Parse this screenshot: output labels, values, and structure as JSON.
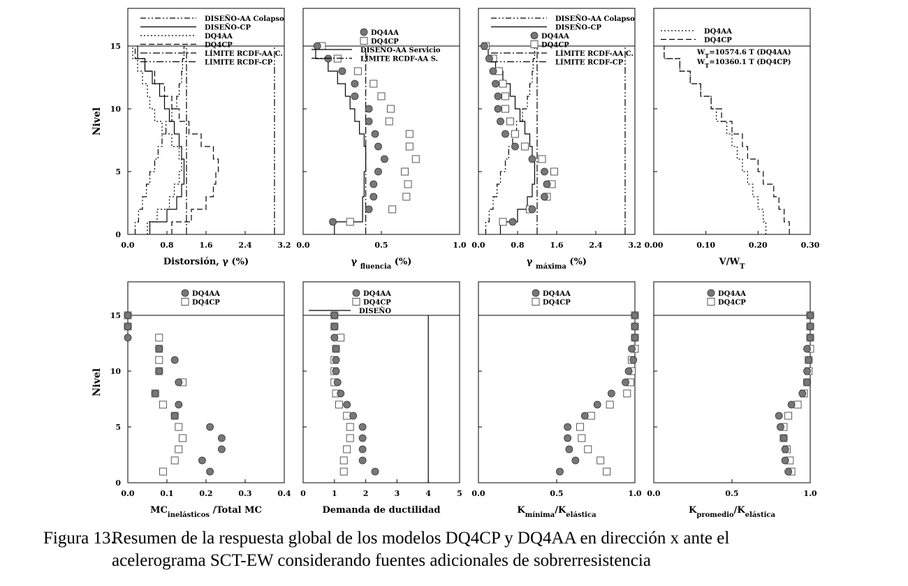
{
  "caption": {
    "number": "Figura 13.",
    "line1": "Resumen de la respuesta global de los modelos DQ4CP y DQ4AA en dirección x ante el",
    "line2": "acelerograma SCT-EW considerando fuentes adicionales de sobrerresistencia"
  },
  "colors": {
    "frame": "#000000",
    "dq4aa_fill": "#777777",
    "dq4cp_fill": "#ffffff",
    "line": "#000000"
  },
  "chart_data": [
    {
      "type": "line",
      "title": "",
      "ylabel": "Nivel",
      "xlabel": "Distorsión, γ (%)",
      "xlim": [
        0,
        3.2
      ],
      "ylim": [
        0,
        18
      ],
      "xticks": [
        "0.0",
        "0.8",
        "1.6",
        "2.4",
        "3.2"
      ],
      "xtick_values": [
        0,
        0.8,
        1.6,
        2.4,
        3.2
      ],
      "yticks": [
        "0",
        "5",
        "10",
        "15"
      ],
      "ytick_values": [
        0,
        5,
        10,
        15
      ],
      "roof_level": 15,
      "legend": [
        "DISEÑO-AA Colapso",
        "DISEÑO-CP",
        "DQ4AA",
        "DQ4CP",
        "LÍMITE RCDF-AA C.",
        "LÍMITE RCDF-CP"
      ],
      "series": [
        {
          "name": "DISEÑO-AA Colapso",
          "style": "dashdotdot",
          "values": [
            0.15,
            0.22,
            0.3,
            0.38,
            0.45,
            0.55,
            0.62,
            0.7,
            0.78,
            0.9,
            1.0,
            1.05,
            1.1,
            1.12,
            1.15
          ]
        },
        {
          "name": "DISEÑO-CP",
          "style": "solid",
          "values": [
            0.45,
            0.8,
            1.0,
            1.1,
            1.15,
            1.15,
            1.1,
            1.05,
            0.95,
            0.85,
            0.75,
            0.65,
            0.5,
            0.35,
            0.2
          ]
        },
        {
          "name": "DQ4AA",
          "style": "dotted",
          "values": [
            0.4,
            0.6,
            0.85,
            0.95,
            1.05,
            1.1,
            1.05,
            0.9,
            0.7,
            0.55,
            0.45,
            0.4,
            0.3,
            0.2,
            0.1
          ]
        },
        {
          "name": "DQ4CP",
          "style": "dashed",
          "values": [
            0.9,
            1.3,
            1.6,
            1.75,
            1.8,
            1.85,
            1.75,
            1.5,
            1.25,
            1.05,
            0.9,
            0.75,
            0.55,
            0.35,
            0.15
          ]
        },
        {
          "name": "LÍMITE RCDF-AA C.",
          "style": "dashdot",
          "vertical": 1.2
        },
        {
          "name": "LÍMITE RCDF-CP",
          "style": "dashdotdot2",
          "vertical": 3.0
        }
      ]
    },
    {
      "type": "scatter",
      "title": "",
      "xlabel": "γ fluencia (%)",
      "xlabel_main": "γ",
      "xlabel_sub": "fluencia",
      "xlabel_tail": "(%)",
      "xlim": [
        0,
        1.0
      ],
      "ylim": [
        0,
        18
      ],
      "xticks": [
        "0.0",
        "0.5",
        "1.0"
      ],
      "xtick_values": [
        0,
        0.5,
        1.0
      ],
      "yticks": [],
      "ytick_values": [
        0,
        5,
        10,
        15
      ],
      "roof_level": 15,
      "legend": [
        "DQ4AA",
        "DQ4CP",
        "DISEÑO-AA Servicio",
        "LÍMITE RCDF-AA S."
      ],
      "series": [
        {
          "name": "DQ4AA",
          "marker": "circle",
          "levels": [
            1,
            2,
            3,
            4,
            5,
            6,
            7,
            8,
            9,
            10,
            11,
            12,
            13,
            14,
            15
          ],
          "values": [
            0.19,
            0.42,
            0.45,
            0.45,
            0.48,
            0.52,
            0.48,
            0.46,
            0.42,
            0.42,
            0.33,
            0.33,
            0.25,
            0.16,
            0.09
          ]
        },
        {
          "name": "DQ4CP",
          "marker": "square",
          "levels": [
            1,
            2,
            3,
            4,
            5,
            6,
            7,
            8,
            9,
            10,
            11,
            12,
            13,
            14,
            15
          ],
          "values": [
            0.3,
            0.57,
            0.66,
            0.67,
            0.65,
            0.72,
            0.68,
            0.68,
            0.55,
            0.56,
            0.5,
            0.45,
            0.35,
            0.22,
            0.12
          ]
        },
        {
          "name": "DISEÑO-AA Servicio",
          "style": "solid",
          "values": [
            0.2,
            0.38,
            0.38,
            0.39,
            0.39,
            0.4,
            0.4,
            0.39,
            0.36,
            0.33,
            0.3,
            0.27,
            0.22,
            0.16,
            0.08
          ]
        },
        {
          "name": "LÍMITE RCDF-AA S.",
          "style": "dashdot",
          "vertical": 0.4
        }
      ]
    },
    {
      "type": "scatter",
      "title": "",
      "xlabel": "γ máxima (%)",
      "xlabel_main": "γ",
      "xlabel_sub": "máxima",
      "xlabel_tail": "(%)",
      "xlim": [
        0,
        3.2
      ],
      "ylim": [
        0,
        18
      ],
      "xticks": [
        "0.0",
        "0.8",
        "1.6",
        "2.4",
        "3.2"
      ],
      "xtick_values": [
        0,
        0.8,
        1.6,
        2.4,
        3.2
      ],
      "yticks": [],
      "ytick_values": [
        0,
        5,
        10,
        15
      ],
      "roof_level": 15,
      "legend": [
        "DISEÑO-AA Colapso",
        "DISEÑO-CP",
        "DQ4AA",
        "DQ4CP",
        "LÍMITE RCDF-AA C.",
        "LÍMITE RCDF-CP"
      ],
      "series": [
        {
          "name": "DISEÑO-AA Colapso",
          "style": "dashdotdot",
          "values": [
            0.15,
            0.22,
            0.3,
            0.38,
            0.45,
            0.55,
            0.62,
            0.7,
            0.78,
            0.9,
            1.0,
            1.05,
            1.1,
            1.12,
            1.15
          ]
        },
        {
          "name": "DISEÑO-CP",
          "style": "solid",
          "values": [
            0.45,
            0.8,
            1.0,
            1.1,
            1.15,
            1.15,
            1.1,
            1.05,
            0.95,
            0.85,
            0.75,
            0.65,
            0.5,
            0.35,
            0.2
          ]
        },
        {
          "name": "DQ4AA",
          "marker": "circle",
          "levels": [
            1,
            2,
            3,
            4,
            5,
            6,
            7,
            8,
            9,
            10,
            11,
            12,
            13,
            14,
            15
          ],
          "values": [
            0.7,
            1.1,
            1.35,
            1.4,
            1.35,
            1.1,
            0.75,
            0.55,
            0.45,
            0.4,
            0.4,
            0.35,
            0.3,
            0.22,
            0.12
          ]
        },
        {
          "name": "DQ4CP",
          "marker": "square",
          "levels": [
            1,
            2,
            3,
            4,
            5,
            6,
            7,
            8,
            9,
            10,
            11,
            12,
            13,
            14,
            15
          ],
          "values": [
            0.5,
            1.05,
            1.4,
            1.5,
            1.55,
            1.3,
            0.95,
            0.75,
            0.65,
            0.55,
            0.55,
            0.5,
            0.42,
            0.3,
            0.15
          ]
        },
        {
          "name": "LÍMITE RCDF-AA C.",
          "style": "dashdot",
          "vertical": 1.2
        },
        {
          "name": "LÍMITE RCDF-CP",
          "style": "dashdotdot2",
          "vertical": 3.0
        }
      ]
    },
    {
      "type": "line",
      "title": "",
      "xlabel": "V/WT",
      "xlabel_main": "V/W",
      "xlabel_sub": "T",
      "xlabel_tail": "",
      "xlim": [
        0,
        0.3
      ],
      "ylim": [
        0,
        18
      ],
      "xticks": [
        "0.00",
        "0.10",
        "0.20",
        "0.30"
      ],
      "xtick_values": [
        0,
        0.1,
        0.2,
        0.3
      ],
      "yticks": [],
      "ytick_values": [
        0,
        5,
        10,
        15
      ],
      "roof_level": 15,
      "legend": [
        "DQ4AA",
        "DQ4CP"
      ],
      "annotations": [
        {
          "main": "W",
          "sub": "T",
          "text": "=10574.6 T (DQ4AA)"
        },
        {
          "main": "W",
          "sub": "T",
          "text": "=10360.1 T (DQ4CP)"
        }
      ],
      "series": [
        {
          "name": "DQ4AA",
          "style": "dotted",
          "values": [
            0.215,
            0.21,
            0.2,
            0.19,
            0.18,
            0.17,
            0.16,
            0.15,
            0.14,
            0.12,
            0.11,
            0.09,
            0.07,
            0.05,
            0.02
          ]
        },
        {
          "name": "DQ4CP",
          "style": "dashed",
          "values": [
            0.26,
            0.25,
            0.24,
            0.23,
            0.21,
            0.2,
            0.18,
            0.17,
            0.15,
            0.13,
            0.11,
            0.09,
            0.07,
            0.05,
            0.02
          ]
        }
      ]
    },
    {
      "type": "scatter",
      "title": "",
      "ylabel": "Nivel",
      "xlabel": "MCinelásticos/Total MC",
      "xlabel_main": "MC",
      "xlabel_sub": "inelásticos",
      "xlabel_tail": "/Total MC",
      "xlim": [
        0,
        0.4
      ],
      "ylim": [
        0,
        18
      ],
      "xticks": [
        "0.0",
        "0.1",
        "0.2",
        "0.3",
        "0.4"
      ],
      "xtick_values": [
        0,
        0.1,
        0.2,
        0.3,
        0.4
      ],
      "yticks": [
        "0",
        "5",
        "10",
        "15"
      ],
      "ytick_values": [
        0,
        5,
        10,
        15
      ],
      "roof_level": 15,
      "legend": [
        "DQ4AA",
        "DQ4CP"
      ],
      "series": [
        {
          "name": "DQ4AA",
          "marker": "circle",
          "levels": [
            1,
            2,
            3,
            4,
            5,
            6,
            7,
            8,
            9,
            10,
            11,
            12,
            13,
            14,
            15
          ],
          "values": [
            0.21,
            0.19,
            0.24,
            0.24,
            0.21,
            0.12,
            0.13,
            0.07,
            0.13,
            0.08,
            0.12,
            0.08,
            0.0,
            0.0,
            0.0
          ]
        },
        {
          "name": "DQ4CP",
          "marker": "square",
          "levels": [
            1,
            2,
            3,
            4,
            5,
            6,
            7,
            8,
            9,
            10,
            11,
            12,
            13,
            14,
            15
          ],
          "values": [
            0.09,
            0.12,
            0.13,
            0.14,
            0.13,
            0.12,
            0.09,
            0.07,
            0.14,
            0.08,
            0.08,
            0.08,
            0.08,
            0.0,
            0.0
          ]
        }
      ]
    },
    {
      "type": "scatter",
      "title": "",
      "xlabel": "Demanda de ductilidad",
      "xlim": [
        0,
        5
      ],
      "ylim": [
        0,
        18
      ],
      "xticks": [
        "0",
        "1",
        "2",
        "3",
        "4",
        "5"
      ],
      "xtick_values": [
        0,
        1,
        2,
        3,
        4,
        5
      ],
      "yticks": [],
      "ytick_values": [
        0,
        5,
        10,
        15
      ],
      "roof_level": 15,
      "legend": [
        "DQ4AA",
        "DQ4CP",
        "DISEÑO"
      ],
      "series": [
        {
          "name": "DQ4AA",
          "marker": "circle",
          "levels": [
            1,
            2,
            3,
            4,
            5,
            6,
            7,
            8,
            9,
            10,
            11,
            12,
            13,
            14,
            15
          ],
          "values": [
            2.3,
            1.9,
            1.9,
            1.9,
            1.9,
            1.6,
            1.4,
            1.2,
            1.1,
            1.05,
            1.05,
            1.05,
            1.0,
            1.0,
            1.0
          ]
        },
        {
          "name": "DQ4CP",
          "marker": "square",
          "levels": [
            1,
            2,
            3,
            4,
            5,
            6,
            7,
            8,
            9,
            10,
            11,
            12,
            13,
            14,
            15
          ],
          "values": [
            1.3,
            1.3,
            1.4,
            1.5,
            1.5,
            1.4,
            1.15,
            1.05,
            1.0,
            1.0,
            1.0,
            1.05,
            1.2,
            1.0,
            1.0
          ]
        },
        {
          "name": "DISEÑO",
          "style": "solid",
          "vertical": 4.0
        }
      ]
    },
    {
      "type": "scatter",
      "title": "",
      "xlabel": "Kmínima/Kelástica",
      "xlabel_main": "K",
      "xlabel_sub": "mínima",
      "xlabel_main2": "/K",
      "xlabel_sub2": "elástica",
      "xlim": [
        0,
        1.0
      ],
      "ylim": [
        0,
        18
      ],
      "xticks": [
        "0.0",
        "0.5",
        "1.0"
      ],
      "xtick_values": [
        0,
        0.5,
        1.0
      ],
      "yticks": [],
      "ytick_values": [
        0,
        5,
        10,
        15
      ],
      "roof_level": 15,
      "legend": [
        "DQ4AA",
        "DQ4CP"
      ],
      "series": [
        {
          "name": "DQ4AA",
          "marker": "circle",
          "levels": [
            1,
            2,
            3,
            4,
            5,
            6,
            7,
            8,
            9,
            10,
            11,
            12,
            13,
            14,
            15
          ],
          "values": [
            0.52,
            0.62,
            0.58,
            0.57,
            0.57,
            0.68,
            0.76,
            0.85,
            0.94,
            0.96,
            0.99,
            0.98,
            1.0,
            1.0,
            1.0
          ]
        },
        {
          "name": "DQ4CP",
          "marker": "square",
          "levels": [
            1,
            2,
            3,
            4,
            5,
            6,
            7,
            8,
            9,
            10,
            11,
            12,
            13,
            14,
            15
          ],
          "values": [
            0.82,
            0.78,
            0.7,
            0.66,
            0.65,
            0.72,
            0.84,
            0.95,
            0.97,
            0.98,
            0.98,
            1.0,
            1.0,
            1.0,
            1.0
          ]
        }
      ]
    },
    {
      "type": "scatter",
      "title": "",
      "xlabel": "Kpromedio/Kelástica",
      "xlabel_main": "K",
      "xlabel_sub": "promedio",
      "xlabel_main2": "/K",
      "xlabel_sub2": "elástica",
      "xlim": [
        0,
        1.0
      ],
      "ylim": [
        0,
        18
      ],
      "xticks": [
        "0.0",
        "0.5",
        "1.0"
      ],
      "xtick_values": [
        0,
        0.5,
        1.0
      ],
      "yticks": [],
      "ytick_values": [
        0,
        5,
        10,
        15
      ],
      "roof_level": 15,
      "legend": [
        "DQ4AA",
        "DQ4CP"
      ],
      "series": [
        {
          "name": "DQ4AA",
          "marker": "circle",
          "levels": [
            1,
            2,
            3,
            4,
            5,
            6,
            7,
            8,
            9,
            10,
            11,
            12,
            13,
            14,
            15
          ],
          "values": [
            0.86,
            0.84,
            0.84,
            0.83,
            0.81,
            0.8,
            0.88,
            0.95,
            0.98,
            0.98,
            0.99,
            0.98,
            1.0,
            1.0,
            1.0
          ]
        },
        {
          "name": "DQ4CP",
          "marker": "square",
          "levels": [
            1,
            2,
            3,
            4,
            5,
            6,
            7,
            8,
            9,
            10,
            11,
            12,
            13,
            14,
            15
          ],
          "values": [
            0.88,
            0.87,
            0.85,
            0.83,
            0.83,
            0.86,
            0.92,
            0.96,
            0.98,
            0.99,
            0.99,
            1.0,
            1.0,
            1.0,
            1.0
          ]
        }
      ]
    }
  ]
}
